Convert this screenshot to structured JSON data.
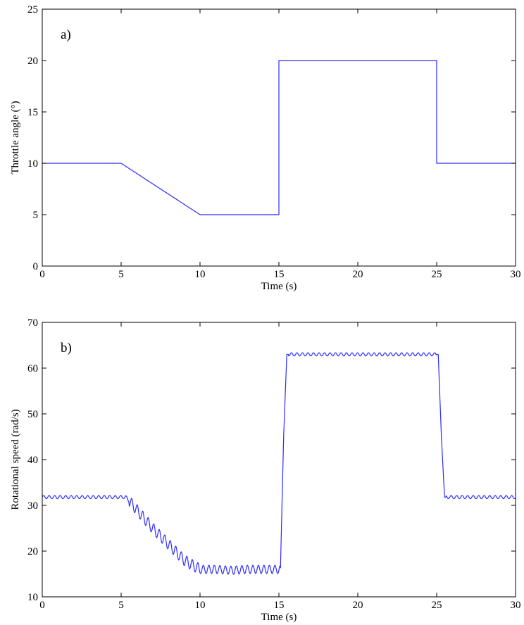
{
  "chart_data": [
    {
      "type": "line",
      "panel_label": "a)",
      "xlabel": "Time (s)",
      "ylabel": "Throttle angle (°)",
      "xlim": [
        0,
        30
      ],
      "ylim": [
        0,
        25
      ],
      "xticks": [
        0,
        5,
        10,
        15,
        20,
        25,
        30
      ],
      "yticks": [
        0,
        5,
        10,
        15,
        20,
        25
      ],
      "grid": false,
      "color": "#2b2bff",
      "series": [
        {
          "x": [
            0,
            5,
            10,
            15,
            15,
            25,
            25,
            30
          ],
          "y": [
            10,
            10,
            5,
            5,
            20,
            20,
            10,
            10
          ]
        }
      ]
    },
    {
      "type": "line",
      "panel_label": "b)",
      "xlabel": "Time (s)",
      "ylabel": "Rotational speed (rad/s)",
      "xlim": [
        0,
        30
      ],
      "ylim": [
        10,
        70
      ],
      "xticks": [
        0,
        5,
        10,
        15,
        20,
        25,
        30
      ],
      "yticks": [
        10,
        20,
        30,
        40,
        50,
        60,
        70
      ],
      "grid": false,
      "color": "#2b2bff",
      "series": [
        {
          "x": [
            0,
            5.3,
            6,
            7,
            8,
            9,
            10,
            11,
            12,
            13,
            14,
            15.1,
            15.3,
            15.5,
            25.1,
            25.3,
            25.5,
            30
          ],
          "y": [
            31.8,
            31.8,
            29,
            25,
            21.5,
            18,
            16,
            16,
            15.8,
            16,
            16,
            16,
            45,
            63,
            63,
            45,
            31.8,
            31.8
          ]
        }
      ]
    }
  ]
}
